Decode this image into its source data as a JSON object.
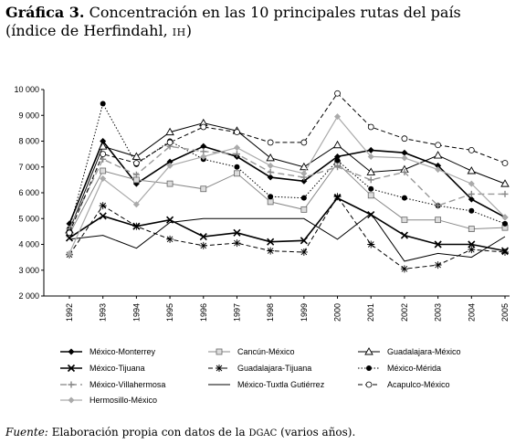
{
  "title": {
    "label": "Gráfica 3.",
    "text": "Concentración en las 10 principales rutas del país",
    "line2_pre": "(índice de Herfindahl, ",
    "line2_abbr": "IH",
    "line2_post": ")"
  },
  "source": {
    "label": "Fuente:",
    "text_pre": "Elaboración propia con datos de la ",
    "abbr": "DGAC",
    "text_post": " (varios años)."
  },
  "chart_data": {
    "type": "line",
    "x": [
      "1992",
      "1993",
      "1994",
      "1995",
      "1996",
      "1997",
      "1998",
      "1999",
      "2000",
      "2001",
      "2002",
      "2003",
      "2004",
      "2005"
    ],
    "ylim": [
      2000,
      10000
    ],
    "yticks": [
      "2 000",
      "3 000",
      "4 000",
      "5 000",
      "6 000",
      "7 000",
      "8 000",
      "9 000",
      "10 000"
    ],
    "ytick_values": [
      2000,
      3000,
      4000,
      5000,
      6000,
      7000,
      8000,
      9000,
      10000
    ],
    "grid": false,
    "legend_position": "bottom",
    "series": [
      {
        "name": "México-Monterrey",
        "style": "solid",
        "width": 1.6,
        "color": "#000000",
        "marker": "diamond-filled",
        "values": [
          4800,
          8000,
          6350,
          7200,
          7800,
          7400,
          6600,
          6450,
          7400,
          7650,
          7550,
          7050,
          5750,
          5050
        ]
      },
      {
        "name": "Cancún-México",
        "style": "solid",
        "width": 1,
        "color": "#888888",
        "marker": "square-open",
        "values": [
          4400,
          6850,
          6500,
          6350,
          6150,
          6750,
          5650,
          5350,
          7150,
          5900,
          4950,
          4950,
          4600,
          4650
        ]
      },
      {
        "name": "Guadalajara-México",
        "style": "solid",
        "width": 1,
        "color": "#000000",
        "marker": "triangle-open",
        "values": [
          4550,
          7800,
          7400,
          8350,
          8700,
          8400,
          7350,
          7000,
          7850,
          6800,
          6900,
          7450,
          6850,
          6350
        ]
      },
      {
        "name": "México-Tijuana",
        "style": "solid",
        "width": 1.6,
        "color": "#000000",
        "marker": "x",
        "values": [
          4250,
          5100,
          4700,
          4950,
          4300,
          4450,
          4100,
          4150,
          5800,
          5150,
          4350,
          4000,
          4000,
          3750
        ]
      },
      {
        "name": "Guadalajara-Tijuana",
        "style": "dashed",
        "width": 1,
        "color": "#000000",
        "marker": "star",
        "values": [
          3600,
          5500,
          4700,
          4200,
          3950,
          4050,
          3750,
          3700,
          5850,
          4000,
          3050,
          3200,
          3800,
          3700
        ]
      },
      {
        "name": "México-Mérida",
        "style": "dotted",
        "width": 1,
        "color": "#000000",
        "marker": "circle-filled",
        "values": [
          4600,
          9450,
          7100,
          8000,
          7300,
          7000,
          5850,
          5800,
          7250,
          6150,
          5800,
          5500,
          5300,
          4800
        ]
      },
      {
        "name": "México-Villahermosa",
        "style": "dashed-long",
        "width": 1.4,
        "color": "#999999",
        "marker": "plus",
        "values": [
          4600,
          7300,
          6700,
          7800,
          7600,
          7500,
          6800,
          6600,
          7000,
          6500,
          6800,
          5500,
          5950,
          5950
        ]
      },
      {
        "name": "México-Tuxtla Gutiérrez",
        "style": "solid",
        "width": 1,
        "color": "#000000",
        "marker": "none",
        "values": [
          4200,
          4350,
          3850,
          4850,
          5000,
          5000,
          5000,
          5000,
          4200,
          5200,
          3350,
          3650,
          3500,
          4300
        ]
      },
      {
        "name": "Acapulco-México",
        "style": "dashed",
        "width": 1,
        "color": "#000000",
        "marker": "circle-open",
        "values": [
          4450,
          7500,
          7150,
          7950,
          8550,
          8350,
          7950,
          7950,
          9850,
          8550,
          8100,
          7850,
          7650,
          7150
        ]
      },
      {
        "name": "Hermosillo-México",
        "style": "solid",
        "width": 1.2,
        "color": "#aaaaaa",
        "marker": "diamond-gray",
        "values": [
          3650,
          6550,
          5550,
          7050,
          7400,
          7750,
          7050,
          6750,
          8950,
          7400,
          7350,
          6900,
          6350,
          5050
        ]
      }
    ]
  }
}
